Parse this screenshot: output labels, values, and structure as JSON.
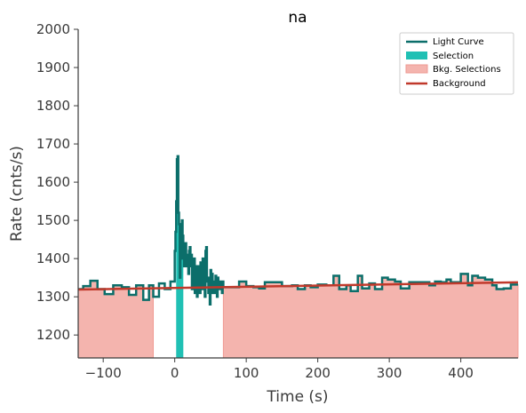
{
  "chart_data": {
    "type": "line",
    "title": "na",
    "xlabel": "Time (s)",
    "ylabel": "Rate (cnts/s)",
    "xlim": [
      -135,
      480
    ],
    "ylim": [
      1140,
      2000
    ],
    "x_ticks": [
      -100,
      0,
      100,
      200,
      300,
      400
    ],
    "y_ticks": [
      1200,
      1300,
      1400,
      1500,
      1600,
      1700,
      1800,
      1900,
      2000
    ],
    "x_tick_labels": [
      "−100",
      "0",
      "100",
      "200",
      "300",
      "400"
    ],
    "y_tick_labels": [
      "1200",
      "1300",
      "1400",
      "1500",
      "1600",
      "1700",
      "1800",
      "1900",
      "2000"
    ],
    "grid": false,
    "legend_position": "top-right",
    "legend": [
      {
        "label": "Light Curve",
        "kind": "line",
        "color": "#0b6e6a"
      },
      {
        "label": "Selection",
        "kind": "patch",
        "color": "#20c0b4"
      },
      {
        "label": "Bkg. Selections",
        "kind": "patch",
        "color": "#f4b4ae"
      },
      {
        "label": "Background",
        "kind": "line",
        "color": "#c0392b"
      }
    ],
    "colors": {
      "light_curve": "#0b6e6a",
      "selection": "#20c0b4",
      "bkg_selection": "#f4b4ae",
      "background": "#c0392b"
    },
    "selection_interval": [
      2,
      12
    ],
    "bkg_intervals": [
      [
        -135,
        -30
      ],
      [
        68,
        480
      ]
    ],
    "background_line": {
      "x": [
        -135,
        480
      ],
      "y": [
        1319,
        1338
      ]
    },
    "light_curve": {
      "x": [
        -135,
        -128,
        -118,
        -108,
        -98,
        -86,
        -74,
        -64,
        -54,
        -44,
        -36,
        -30,
        -22,
        -14,
        -6,
        0,
        1,
        2,
        3,
        4,
        5,
        6,
        7,
        8,
        9,
        10,
        11,
        12,
        13,
        14,
        15,
        16,
        17,
        18,
        19,
        20,
        21,
        22,
        23,
        24,
        25,
        26,
        27,
        28,
        29,
        30,
        31,
        32,
        33,
        34,
        35,
        36,
        37,
        38,
        39,
        40,
        41,
        42,
        43,
        44,
        45,
        46,
        47,
        48,
        49,
        50,
        51,
        52,
        53,
        54,
        55,
        56,
        57,
        58,
        59,
        60,
        61,
        62,
        63,
        64,
        65,
        66,
        67,
        68,
        80,
        90,
        100,
        110,
        118,
        126,
        136,
        150,
        164,
        172,
        182,
        190,
        200,
        212,
        222,
        230,
        240,
        246,
        256,
        262,
        272,
        280,
        290,
        298,
        308,
        316,
        328,
        344,
        356,
        364,
        372,
        380,
        386,
        400,
        410,
        416,
        424,
        434,
        444,
        450,
        460,
        470,
        480
      ],
      "y": [
        1320,
        1328,
        1342,
        1320,
        1307,
        1330,
        1325,
        1305,
        1330,
        1292,
        1330,
        1300,
        1335,
        1320,
        1340,
        1420,
        1470,
        1550,
        1660,
        1668,
        1520,
        1490,
        1350,
        1460,
        1400,
        1500,
        1460,
        1420,
        1380,
        1420,
        1440,
        1400,
        1380,
        1410,
        1360,
        1420,
        1430,
        1380,
        1410,
        1320,
        1370,
        1340,
        1400,
        1310,
        1350,
        1380,
        1300,
        1360,
        1330,
        1380,
        1310,
        1390,
        1360,
        1320,
        1400,
        1350,
        1380,
        1300,
        1420,
        1430,
        1340,
        1350,
        1310,
        1340,
        1280,
        1370,
        1320,
        1360,
        1310,
        1340,
        1330,
        1310,
        1355,
        1320,
        1300,
        1350,
        1320,
        1320,
        1340,
        1330,
        1320,
        1310,
        1340,
        1325,
        1325,
        1340,
        1328,
        1325,
        1322,
        1338,
        1338,
        1328,
        1330,
        1320,
        1330,
        1325,
        1332,
        1330,
        1355,
        1320,
        1330,
        1315,
        1355,
        1322,
        1335,
        1320,
        1350,
        1345,
        1340,
        1322,
        1338,
        1338,
        1330,
        1340,
        1338,
        1345,
        1338,
        1360,
        1330,
        1355,
        1350,
        1345,
        1330,
        1320,
        1322,
        1332,
        1336
      ]
    }
  }
}
